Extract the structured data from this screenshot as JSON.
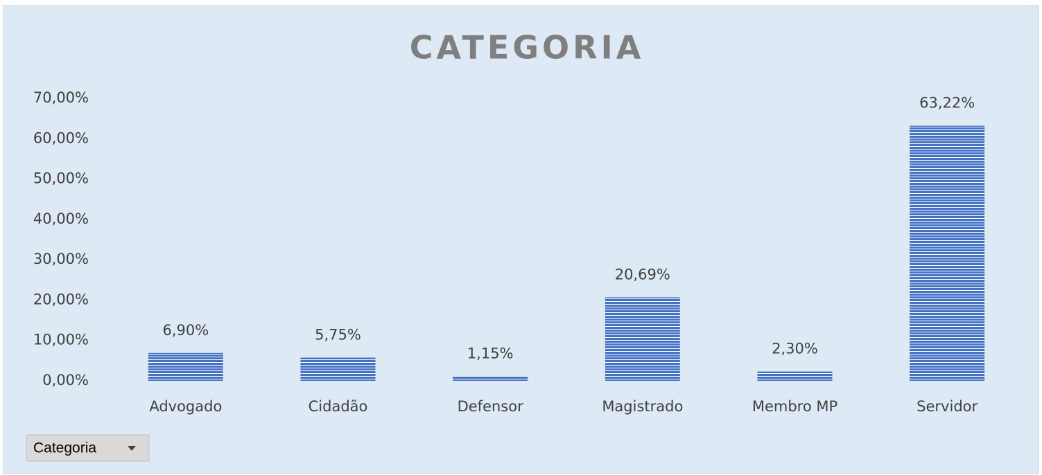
{
  "chart_data": {
    "type": "bar",
    "title": "CATEGORIA",
    "categories": [
      "Advogado",
      "Cidadão",
      "Defensor",
      "Magistrado",
      "Membro MP",
      "Servidor"
    ],
    "values": [
      6.9,
      5.75,
      1.15,
      20.69,
      2.3,
      63.22
    ],
    "value_labels": [
      "6,90%",
      "5,75%",
      "1,15%",
      "20,69%",
      "2,30%",
      "63,22%"
    ],
    "color": "#4472c4",
    "ylim": [
      0,
      70
    ],
    "yticks": [
      {
        "value": 0,
        "label": "0,00%"
      },
      {
        "value": 10,
        "label": "10,00%"
      },
      {
        "value": 20,
        "label": "20,00%"
      },
      {
        "value": 30,
        "label": "30,00%"
      },
      {
        "value": 40,
        "label": "40,00%"
      },
      {
        "value": 50,
        "label": "50,00%"
      },
      {
        "value": 60,
        "label": "60,00%"
      },
      {
        "value": 70,
        "label": "70,00%"
      }
    ],
    "grid": false,
    "filter_button": "Categoria"
  }
}
